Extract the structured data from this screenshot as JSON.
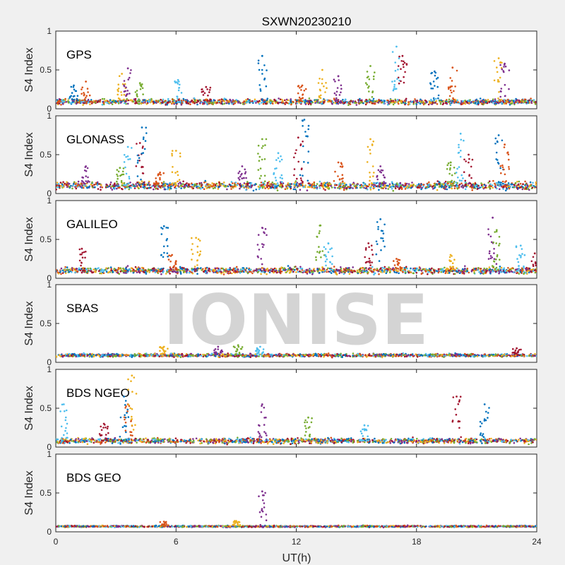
{
  "title": "SXWN20230210",
  "watermark": "IONISE",
  "xlabel": "UT(h)",
  "ylabel": "S4 Index",
  "xlim": [
    0,
    24
  ],
  "ylim": [
    0,
    1
  ],
  "x_ticks": [
    0,
    6,
    12,
    18,
    24
  ],
  "y_ticks": [
    0,
    0.5,
    1
  ],
  "series_colors": [
    "#0072BD",
    "#D95319",
    "#EDB120",
    "#7E2F8E",
    "#77AC30",
    "#4DBEEE",
    "#A2142F"
  ],
  "chart_data": [
    {
      "type": "scatter",
      "label": "GPS",
      "xlim": [
        0,
        24
      ],
      "ylim": [
        0,
        1
      ],
      "baseline_s4": 0.09,
      "baseline_spread": 0.05,
      "peaks": [
        {
          "x": 0.9,
          "y": 0.3
        },
        {
          "x": 1.5,
          "y": 0.35
        },
        {
          "x": 3.3,
          "y": 0.45
        },
        {
          "x": 3.6,
          "y": 0.52
        },
        {
          "x": 4.2,
          "y": 0.33
        },
        {
          "x": 6.1,
          "y": 0.37
        },
        {
          "x": 7.5,
          "y": 0.28
        },
        {
          "x": 10.3,
          "y": 0.68
        },
        {
          "x": 12.3,
          "y": 0.3
        },
        {
          "x": 13.3,
          "y": 0.5
        },
        {
          "x": 14.1,
          "y": 0.42
        },
        {
          "x": 15.7,
          "y": 0.55
        },
        {
          "x": 17.0,
          "y": 0.8
        },
        {
          "x": 17.3,
          "y": 0.68
        },
        {
          "x": 18.9,
          "y": 0.48
        },
        {
          "x": 19.8,
          "y": 0.53
        },
        {
          "x": 22.1,
          "y": 0.65
        },
        {
          "x": 22.4,
          "y": 0.58
        }
      ]
    },
    {
      "type": "scatter",
      "label": "GLONASS",
      "xlim": [
        0,
        24
      ],
      "ylim": [
        0,
        1
      ],
      "baseline_s4": 0.1,
      "baseline_spread": 0.07,
      "peaks": [
        {
          "x": 1.5,
          "y": 0.35
        },
        {
          "x": 3.2,
          "y": 0.33
        },
        {
          "x": 3.6,
          "y": 0.6
        },
        {
          "x": 4.2,
          "y": 0.65
        },
        {
          "x": 4.3,
          "y": 0.85
        },
        {
          "x": 5.2,
          "y": 0.27
        },
        {
          "x": 6.0,
          "y": 0.55
        },
        {
          "x": 9.3,
          "y": 0.35
        },
        {
          "x": 10.3,
          "y": 0.7
        },
        {
          "x": 11.1,
          "y": 0.52
        },
        {
          "x": 12.1,
          "y": 0.72
        },
        {
          "x": 12.4,
          "y": 0.95
        },
        {
          "x": 14.1,
          "y": 0.4
        },
        {
          "x": 15.7,
          "y": 0.7
        },
        {
          "x": 16.2,
          "y": 0.35
        },
        {
          "x": 19.7,
          "y": 0.4
        },
        {
          "x": 20.2,
          "y": 0.77
        },
        {
          "x": 20.6,
          "y": 0.5
        },
        {
          "x": 22.1,
          "y": 0.75
        },
        {
          "x": 22.4,
          "y": 0.63
        }
      ]
    },
    {
      "type": "scatter",
      "label": "GALILEO",
      "xlim": [
        0,
        24
      ],
      "ylim": [
        0,
        1
      ],
      "baseline_s4": 0.1,
      "baseline_spread": 0.06,
      "peaks": [
        {
          "x": 1.3,
          "y": 0.38
        },
        {
          "x": 5.4,
          "y": 0.67
        },
        {
          "x": 5.8,
          "y": 0.3
        },
        {
          "x": 7.0,
          "y": 0.52
        },
        {
          "x": 10.3,
          "y": 0.65
        },
        {
          "x": 13.2,
          "y": 0.68
        },
        {
          "x": 13.6,
          "y": 0.45
        },
        {
          "x": 15.6,
          "y": 0.45
        },
        {
          "x": 16.2,
          "y": 0.76
        },
        {
          "x": 17.0,
          "y": 0.25
        },
        {
          "x": 19.7,
          "y": 0.3
        },
        {
          "x": 21.8,
          "y": 0.78
        },
        {
          "x": 22.0,
          "y": 0.62
        },
        {
          "x": 23.2,
          "y": 0.42
        },
        {
          "x": 23.9,
          "y": 0.32
        }
      ]
    },
    {
      "type": "scatter",
      "label": "SBAS",
      "xlim": [
        0,
        24
      ],
      "ylim": [
        0,
        1
      ],
      "baseline_s4": 0.09,
      "baseline_spread": 0.03,
      "peaks": [
        {
          "x": 5.4,
          "y": 0.2
        },
        {
          "x": 8.1,
          "y": 0.2
        },
        {
          "x": 9.1,
          "y": 0.22
        },
        {
          "x": 10.2,
          "y": 0.2
        },
        {
          "x": 23.0,
          "y": 0.18
        }
      ]
    },
    {
      "type": "scatter",
      "label": "BDS NGEO",
      "xlim": [
        0,
        24
      ],
      "ylim": [
        0,
        1
      ],
      "baseline_s4": 0.08,
      "baseline_spread": 0.05,
      "peaks": [
        {
          "x": 0.4,
          "y": 0.55
        },
        {
          "x": 2.4,
          "y": 0.3
        },
        {
          "x": 3.4,
          "y": 0.65
        },
        {
          "x": 3.6,
          "y": 0.55
        },
        {
          "x": 3.8,
          "y": 0.92
        },
        {
          "x": 10.3,
          "y": 0.55
        },
        {
          "x": 12.6,
          "y": 0.38
        },
        {
          "x": 15.4,
          "y": 0.28
        },
        {
          "x": 20.0,
          "y": 0.65
        },
        {
          "x": 21.4,
          "y": 0.55
        }
      ]
    },
    {
      "type": "scatter",
      "label": "BDS GEO",
      "xlim": [
        0,
        24
      ],
      "ylim": [
        0,
        1
      ],
      "baseline_s4": 0.07,
      "baseline_spread": 0.015,
      "peaks": [
        {
          "x": 5.4,
          "y": 0.13
        },
        {
          "x": 9.0,
          "y": 0.14
        },
        {
          "x": 10.3,
          "y": 0.52
        }
      ]
    }
  ]
}
